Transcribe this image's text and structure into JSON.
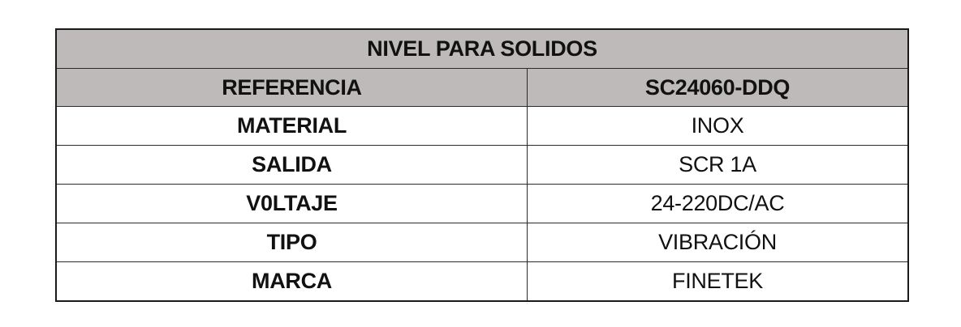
{
  "table": {
    "title": "NIVEL PARA SOLIDOS",
    "header": {
      "label": "REFERENCIA",
      "value": "SC24060-DDQ"
    },
    "rows": [
      {
        "label": "MATERIAL",
        "value": "INOX"
      },
      {
        "label": "SALIDA",
        "value": "SCR 1A"
      },
      {
        "label": "V0LTAJE",
        "value": "24-220DC/AC"
      },
      {
        "label": "TIPO",
        "value": "VIBRACIÓN"
      },
      {
        "label": "MARCA",
        "value": "FINETEK"
      }
    ],
    "colors": {
      "header_bg": "#bdbab9",
      "border": "#1a1a1a"
    }
  }
}
